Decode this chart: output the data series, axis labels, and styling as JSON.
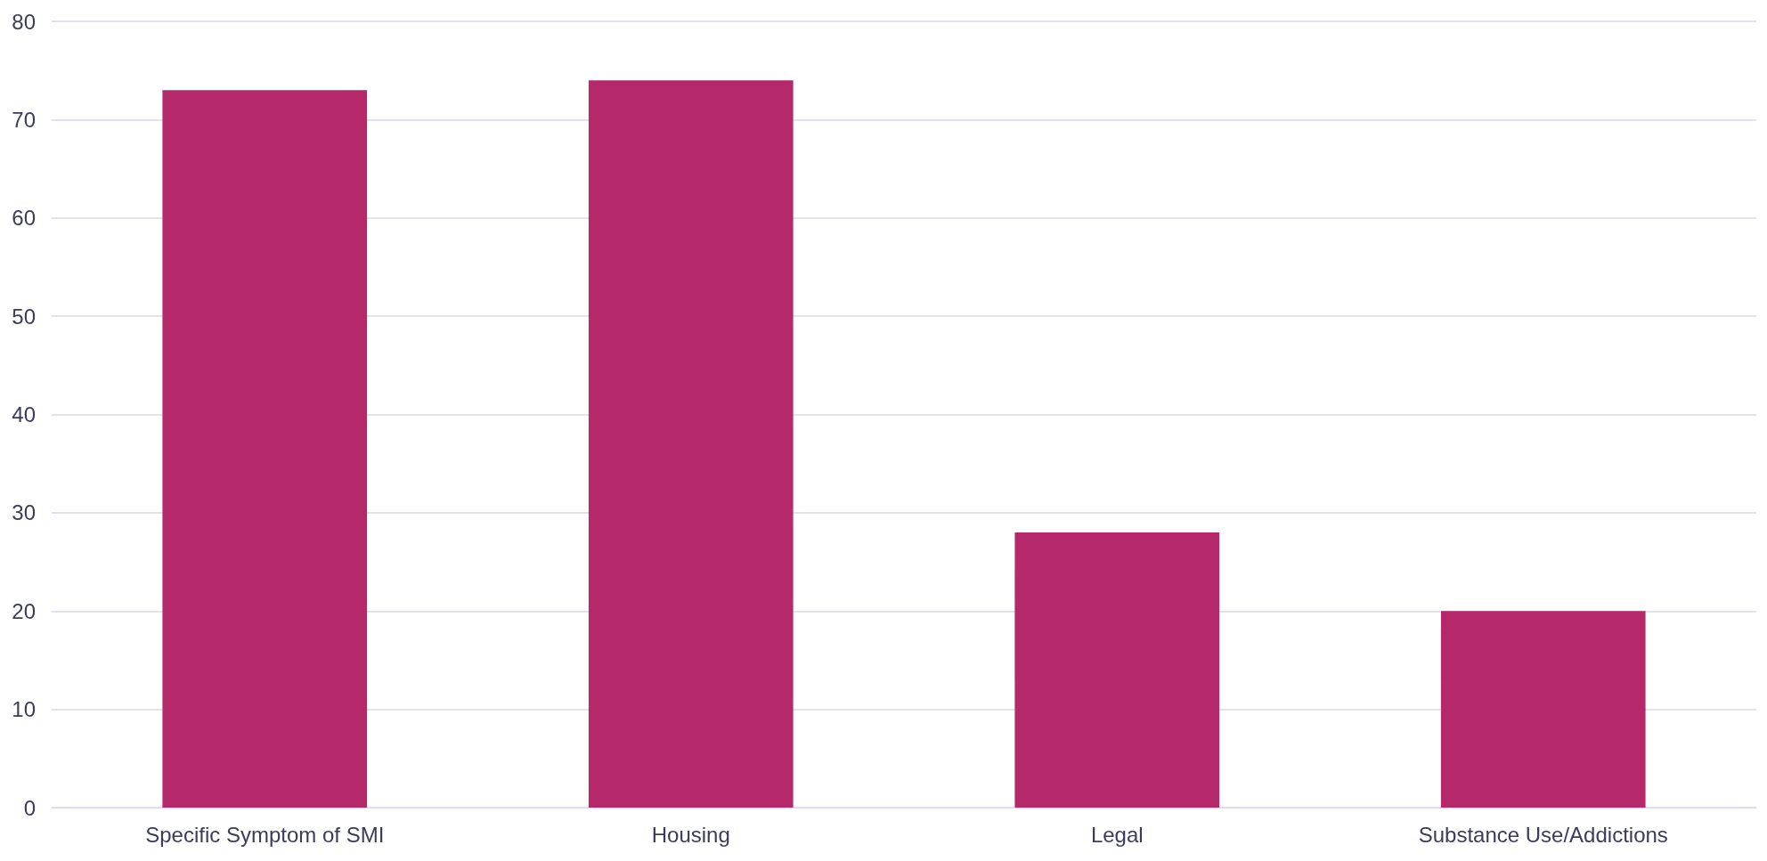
{
  "chart_data": {
    "type": "bar",
    "categories": [
      "Specific Symptom of SMI",
      "Housing",
      "Legal",
      "Substance Use/Addictions"
    ],
    "values": [
      73,
      74,
      28,
      20
    ],
    "color": "#b5296a",
    "ylim": [
      0,
      80
    ],
    "yticks": [
      0,
      10,
      20,
      30,
      40,
      50,
      60,
      70,
      80
    ],
    "grid": "y"
  }
}
